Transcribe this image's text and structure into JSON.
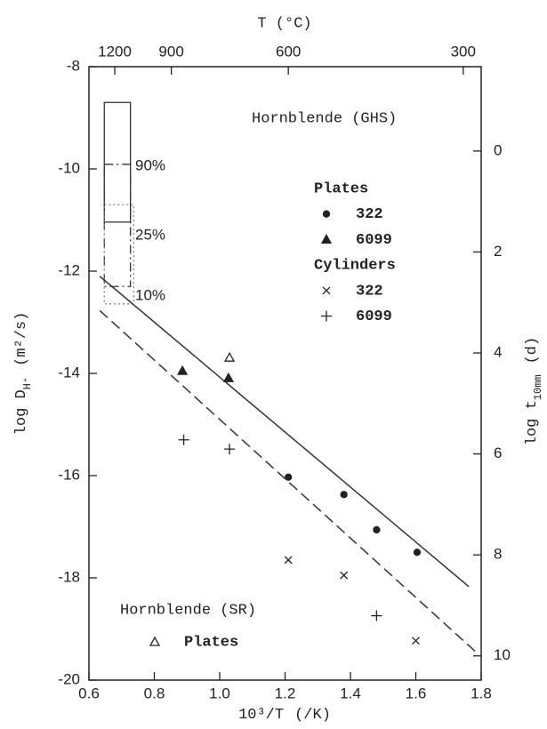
{
  "chart_data": {
    "type": "scatter",
    "x_label": {
      "main": "10³/T",
      "unit": "(/K)"
    },
    "y_label": {
      "main": "log D",
      "sub": "H⁺",
      "unit": "(m²/s)"
    },
    "x2_label": "T (°C)",
    "y2_label": {
      "main": "log t",
      "sub": "10mm",
      "unit": "(d)"
    },
    "xlim": [
      0.6,
      1.8
    ],
    "xticks": [
      0.6,
      0.8,
      {
        "value": 1,
        "label": "1.0"
      },
      1.2,
      1.4,
      1.6,
      1.8
    ],
    "ylim": [
      -20,
      -8
    ],
    "yticks": [
      -20,
      -18,
      -16,
      -14,
      -12,
      -10,
      -8
    ],
    "x2ticks": [
      {
        "value": 0.679,
        "label": "1200"
      },
      {
        "value": 0.852,
        "label": "900"
      },
      {
        "value": 1.21,
        "label": "600"
      },
      {
        "value": 1.745,
        "label": "300"
      }
    ],
    "y2lim": [
      10.48,
      -1.67
    ],
    "y2ticks": [
      0,
      2,
      4,
      6,
      8,
      10
    ],
    "datasets": [
      {
        "title": "Hornblende (GHS)",
        "groups": [
          {
            "name": "Plates",
            "series": [
              {
                "name": "322",
                "marker": "circle",
                "x": [
                  1.21,
                  1.38,
                  1.48,
                  1.604
                ],
                "values": [
                  -16.03,
                  -16.37,
                  -17.06,
                  -17.5
                ]
              },
              {
                "name": "6099",
                "marker": "triangle",
                "x": [
                  0.886,
                  1.027
                ],
                "values": [
                  -13.95,
                  -14.09
                ]
              }
            ]
          },
          {
            "name": "Cylinders",
            "series": [
              {
                "name": "322",
                "marker": "cross",
                "x": [
                  1.21,
                  1.38,
                  1.6
                ],
                "values": [
                  -17.65,
                  -17.95,
                  -19.23
                ]
              },
              {
                "name": "6099",
                "marker": "plus",
                "x": [
                  0.89,
                  1.03,
                  1.48
                ],
                "values": [
                  -15.3,
                  -15.48,
                  -18.74
                ]
              }
            ]
          }
        ]
      },
      {
        "title": "Hornblende (SR)",
        "groups": [
          {
            "name": "Plates",
            "series": [
              {
                "marker": "open-triangle",
                "x": [
                  1.03
                ],
                "values": [
                  -13.69
                ]
              }
            ]
          }
        ]
      }
    ],
    "fits": [
      {
        "style": "solid",
        "x": [
          0.633,
          1.762
        ],
        "values": [
          -12.1,
          -18.17
        ]
      },
      {
        "style": "dashed",
        "x": [
          0.633,
          1.789
        ],
        "values": [
          -12.77,
          -19.48
        ]
      }
    ],
    "ranges": [
      {
        "label": "90%",
        "style": "solid",
        "x": [
          0.647,
          0.727
        ],
        "values": [
          -8.7,
          -11.04
        ]
      },
      {
        "label": "25%",
        "style": "dashdot",
        "x": [
          0.647,
          0.727
        ],
        "values": [
          -9.91,
          -12.3
        ]
      },
      {
        "label": "10%",
        "style": "dotted",
        "x": [
          0.647,
          0.737
        ],
        "values": [
          -10.7,
          -12.64
        ]
      }
    ]
  }
}
